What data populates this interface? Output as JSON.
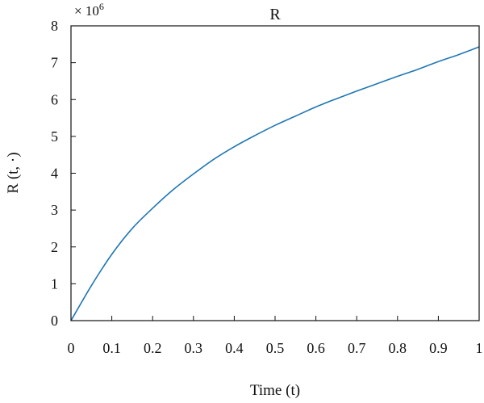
{
  "chart_data": {
    "type": "line",
    "title": "R",
    "xlabel": "Time (t)",
    "ylabel": "R (t, ·)",
    "y_scale_label": "× 10",
    "y_scale_exponent": "6",
    "xlim": [
      0,
      1
    ],
    "ylim": [
      0,
      8
    ],
    "x_ticks": [
      0,
      0.1,
      0.2,
      0.3,
      0.4,
      0.5,
      0.6,
      0.7,
      0.8,
      0.9,
      1
    ],
    "x_tick_labels": [
      "0",
      "0.1",
      "0.2",
      "0.3",
      "0.4",
      "0.5",
      "0.6",
      "0.7",
      "0.8",
      "0.9",
      "1"
    ],
    "y_ticks": [
      0,
      1,
      2,
      3,
      4,
      5,
      6,
      7,
      8
    ],
    "y_tick_labels": [
      "0",
      "1",
      "2",
      "3",
      "4",
      "5",
      "6",
      "7",
      "8"
    ],
    "grid": false,
    "series": [
      {
        "color": "#1f77b4",
        "x": [
          0,
          0.05,
          0.1,
          0.15,
          0.2,
          0.25,
          0.3,
          0.35,
          0.4,
          0.45,
          0.5,
          0.55,
          0.6,
          0.65,
          0.7,
          0.75,
          0.8,
          0.85,
          0.9,
          0.95,
          1.0
        ],
        "y": [
          0,
          0.95,
          1.8,
          2.5,
          3.05,
          3.55,
          3.98,
          4.38,
          4.72,
          5.02,
          5.3,
          5.55,
          5.8,
          6.02,
          6.23,
          6.43,
          6.63,
          6.82,
          7.03,
          7.22,
          7.43
        ]
      }
    ]
  }
}
